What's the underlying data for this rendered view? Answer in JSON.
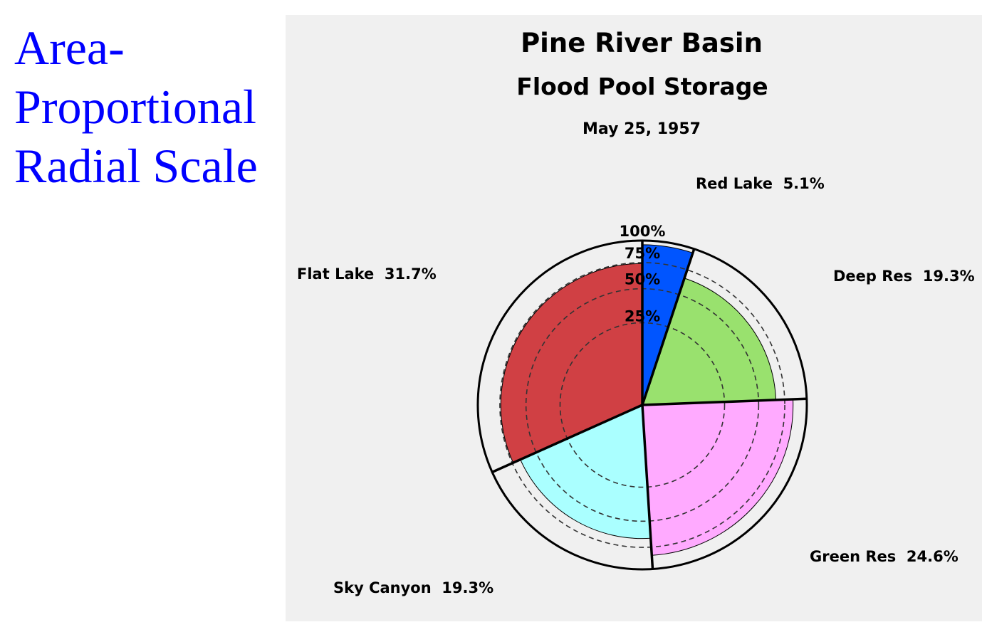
{
  "side_title": "Area-Proportional Radial Scale",
  "chart_data": {
    "type": "pie",
    "variant": "radial-fill pie with area-proportional radial scale",
    "title": "Pine River Basin",
    "subtitle": "Flood Pool Storage",
    "date": "May 25, 1957",
    "radial_ticks": [
      "25%",
      "50%",
      "75%",
      "100%"
    ],
    "radial_tick_values": [
      0.25,
      0.5,
      0.75,
      1.0
    ],
    "slices": [
      {
        "name": "Red Lake",
        "share_label": "5.1%",
        "share": 5.1,
        "fill_fraction": 0.95,
        "color": "#0055ff"
      },
      {
        "name": "Deep Res",
        "share_label": "19.3%",
        "share": 19.3,
        "fill_fraction": 0.66,
        "color": "#99e16e"
      },
      {
        "name": "Green Res",
        "share_label": "24.6%",
        "share": 24.6,
        "fill_fraction": 0.84,
        "color": "#ffaaff"
      },
      {
        "name": "Sky Canyon",
        "share_label": "19.3%",
        "share": 19.3,
        "fill_fraction": 0.66,
        "color": "#aaffff"
      },
      {
        "name": "Flat Lake",
        "share_label": "31.7%",
        "share": 31.7,
        "fill_fraction": 0.74,
        "color": "#d04044"
      }
    ],
    "start_angle": "top, clockwise",
    "background_color": "#f0f0f0"
  }
}
